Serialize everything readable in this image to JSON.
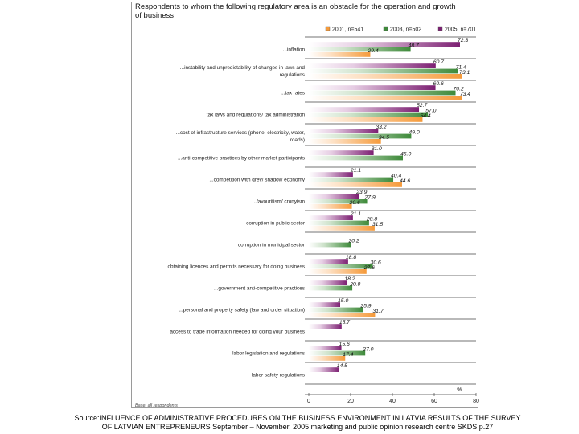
{
  "chart_data": {
    "type": "bar",
    "orientation": "horizontal",
    "title": "Respondents to whom the following regulatory area is an obstacle for the operation and growth of business",
    "xlim": [
      0,
      80
    ],
    "xticks": [
      "0",
      "20",
      "40",
      "60",
      "80"
    ],
    "unit_label": "%",
    "base_note": "Base: all respondents",
    "colors": {
      "2001": "#f59a3a",
      "2003": "#3e8a3a",
      "2005": "#7c1f72"
    },
    "series": [
      {
        "name": "2001, n=541",
        "key": "2001",
        "values": [
          29.4,
          73.1,
          73.4,
          54.4,
          34.5,
          null,
          44.6,
          20.6,
          31.5,
          null,
          27.6,
          null,
          31.7,
          null,
          17.4,
          null
        ]
      },
      {
        "name": "2003, n=502",
        "key": "2003",
        "values": [
          48.7,
          71.4,
          70.2,
          57.0,
          49.0,
          45.0,
          40.4,
          27.9,
          28.8,
          20.2,
          30.6,
          20.8,
          25.9,
          null,
          27.0,
          null
        ]
      },
      {
        "name": "2005, n=701",
        "key": "2005",
        "values": [
          72.3,
          60.7,
          60.6,
          52.7,
          33.2,
          31.0,
          21.1,
          23.9,
          21.1,
          null,
          18.8,
          18.2,
          15.0,
          15.7,
          15.6,
          14.5
        ]
      }
    ],
    "categories": [
      "...inflation",
      "...instability and unpredictability of changes in laws and regulations",
      "...tax rates",
      "tax laws and regulations/ tax administration",
      "...cost of infrastructure services (phone, electricity, water, roads)",
      "...anti-competitive practices by other market participants",
      "...competition with grey/ shadow economy",
      "...favouritism/ cronyism",
      "corruption in public sector",
      "corruption in municipal sector",
      "obtaining licences and permits necessary for doing business",
      "...government anti-competitive practices",
      "...personal and property safety (law and order situation)",
      "access to trade information needed for doing your business",
      "labor legislation and regulations",
      "labor safety regulations"
    ],
    "category_labels": [
      [
        "...inflation"
      ],
      [
        "...instability and unpredictability of changes in laws and",
        "regulations"
      ],
      [
        "...tax rates"
      ],
      [
        "tax laws and regulations/ tax administration"
      ],
      [
        "...cost of infrastructure services (phone, electricity, water,",
        "roads)"
      ],
      [
        "...anti-competitive practices by other market participants"
      ],
      [
        "...competition with grey/ shadow economy"
      ],
      [
        "...favouritism/ cronyism"
      ],
      [
        "corruption in public sector"
      ],
      [
        "corruption in municipal sector"
      ],
      [
        "obtaining licences and permits necessary for doing business"
      ],
      [
        "...government anti-competitive practices"
      ],
      [
        "...personal and property safety (law and order situation)"
      ],
      [
        "access to trade information needed for doing your business"
      ],
      [
        "labor legislation and regulations"
      ],
      [
        "labor safety regulations"
      ]
    ]
  },
  "caption": {
    "source_line1": "Source:INFLUENCE OF ADMINISTRATIVE PROCEDURES ON THE BUSINESS ENVIRONMENT IN LATVIA RESULTS OF THE SURVEY",
    "source_line2": "OF LATVIAN ENTREPRENEURS September – November, 2005 marketing and public opinion research centre SKDS p.27"
  }
}
